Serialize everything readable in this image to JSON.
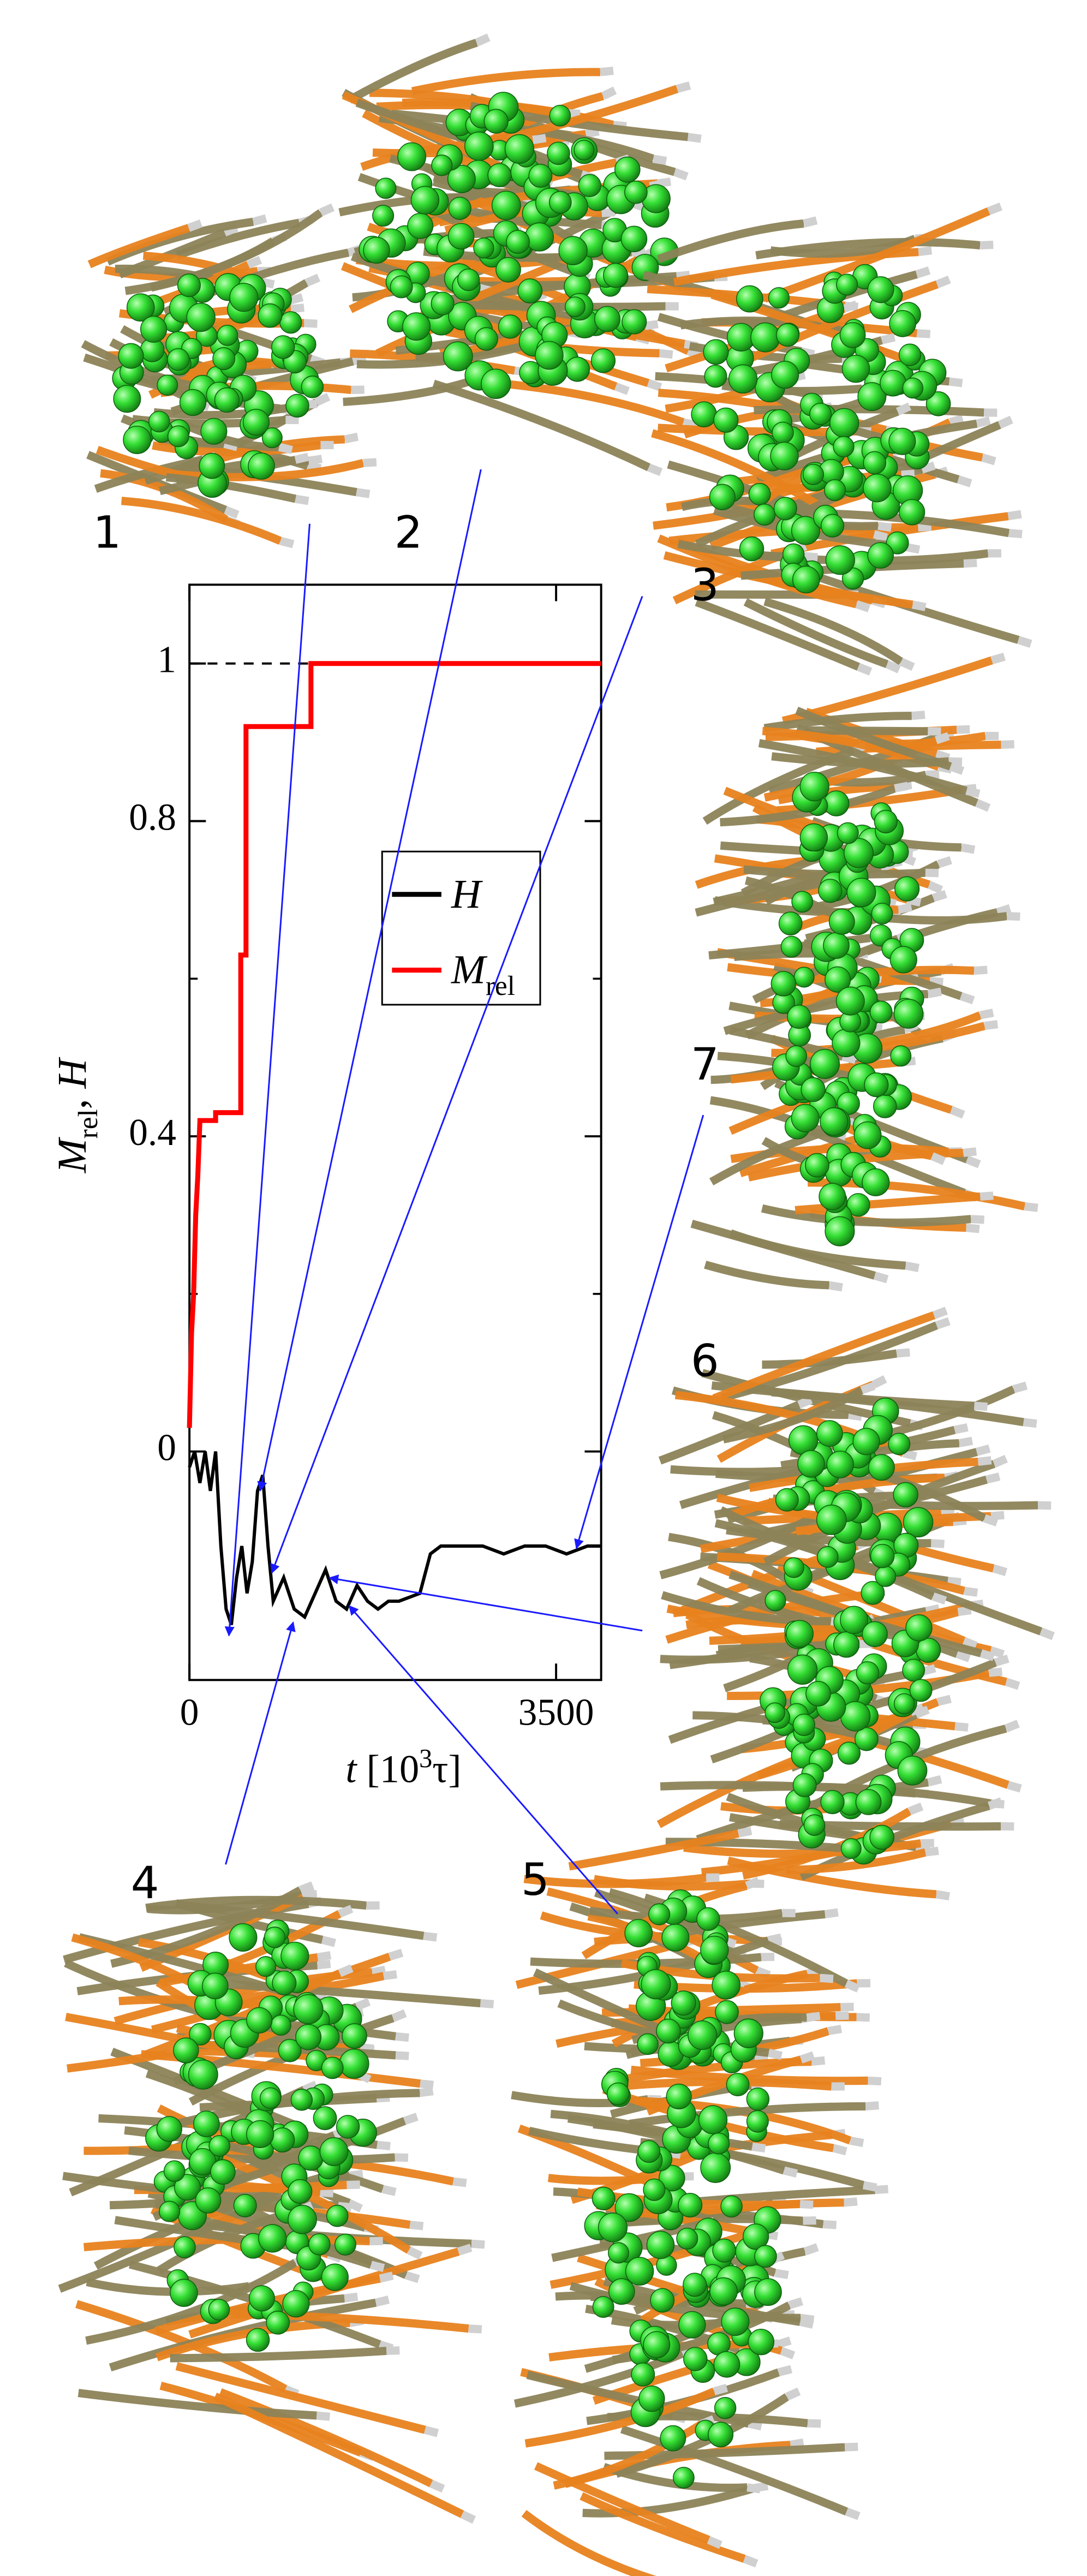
{
  "chart_data": {
    "type": "line",
    "xlabel": {
      "italic": "t",
      "pre": " [10",
      "sup": "3",
      "post": "τ]"
    },
    "ylabel": {
      "main": "M",
      "sub": "rel",
      "sep": ", ",
      "second": "H"
    },
    "xlim": [
      0,
      3930
    ],
    "ylim": [
      -0.29,
      1.1
    ],
    "xticks": [
      0,
      3500
    ],
    "yticks": [
      0,
      0.4,
      0.8,
      1
    ],
    "minor_yticks": [
      0.2,
      0.6
    ],
    "reference_line": 1,
    "legend": "center",
    "series": [
      {
        "name": "H",
        "color": "#000000",
        "x": [
          0,
          50,
          100,
          150,
          200,
          250,
          300,
          350,
          400,
          450,
          500,
          550,
          600,
          650,
          700,
          750,
          800,
          900,
          1000,
          1100,
          1200,
          1300,
          1400,
          1500,
          1600,
          1700,
          1800,
          1900,
          2000,
          2200,
          2300,
          2400,
          2600,
          2800,
          3000,
          3200,
          3400,
          3600,
          3800,
          3930
        ],
        "values": [
          -0.02,
          0,
          -0.04,
          0,
          -0.05,
          0,
          -0.12,
          -0.2,
          -0.22,
          -0.16,
          -0.12,
          -0.18,
          -0.14,
          -0.05,
          -0.03,
          -0.12,
          -0.19,
          -0.16,
          -0.2,
          -0.21,
          -0.18,
          -0.15,
          -0.19,
          -0.2,
          -0.17,
          -0.19,
          -0.2,
          -0.19,
          -0.19,
          -0.18,
          -0.13,
          -0.12,
          -0.12,
          -0.12,
          -0.13,
          -0.12,
          -0.12,
          -0.13,
          -0.12,
          -0.12
        ]
      },
      {
        "name": "M",
        "name_subscript": "rel",
        "color": "#ff0000",
        "x": [
          0,
          20,
          40,
          60,
          80,
          100,
          250,
          250,
          490,
          490,
          540,
          540,
          1160,
          1160,
          3930
        ],
        "values": [
          0.03,
          0.15,
          0.2,
          0.3,
          0.35,
          0.42,
          0.42,
          0.43,
          0.43,
          0.63,
          0.63,
          0.92,
          0.92,
          1,
          1
        ]
      }
    ]
  },
  "panels": [
    "1",
    "2",
    "3",
    "4",
    "5",
    "6",
    "7"
  ]
}
